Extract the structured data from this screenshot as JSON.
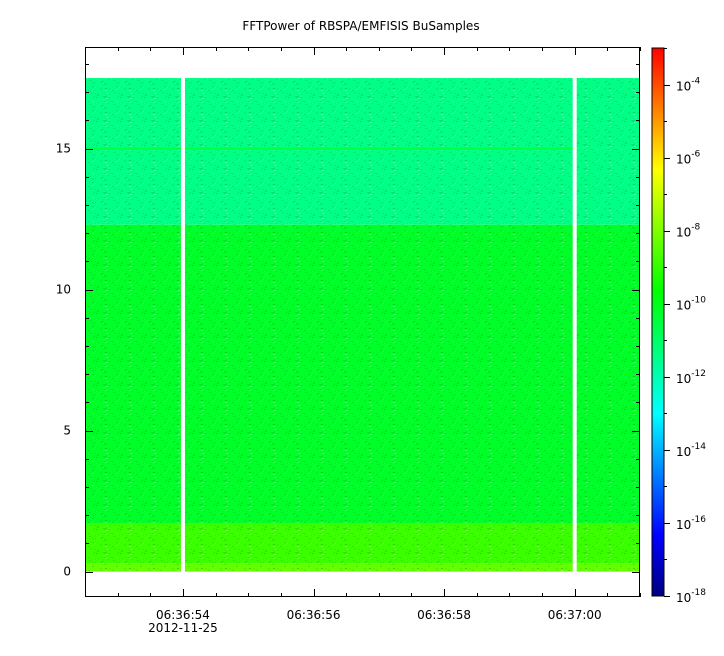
{
  "chart_data": {
    "type": "heatmap",
    "title": "FFTPower of RBSPA/EMFISIS  BuSamples",
    "xlabel": "",
    "ylabel": "",
    "x_axis": {
      "range": [
        "06:36:52.5",
        "06:37:01.0"
      ],
      "ticks": [
        "06:36:54",
        "06:36:56",
        "06:36:58",
        "06:37:00"
      ],
      "date_label": "2012-11-25"
    },
    "y_axis": {
      "range": [
        -0.9,
        18.6
      ],
      "ticks": [
        0,
        5,
        10,
        15
      ]
    },
    "colorbar": {
      "scale": "log",
      "range": [
        1e-18,
        0.001
      ],
      "ticks": [
        {
          "base": "10",
          "exp": "-4"
        },
        {
          "base": "10",
          "exp": "-6"
        },
        {
          "base": "10",
          "exp": "-8"
        },
        {
          "base": "10",
          "exp": "-10"
        },
        {
          "base": "10",
          "exp": "-12"
        },
        {
          "base": "10",
          "exp": "-14"
        },
        {
          "base": "10",
          "exp": "-16"
        },
        {
          "base": "10",
          "exp": "-18"
        }
      ],
      "colormap": [
        "#00007f",
        "#0000ff",
        "#007fff",
        "#00ffff",
        "#00ff7f",
        "#00ff00",
        "#7fff00",
        "#ffff00",
        "#ff7f00",
        "#ff0000"
      ]
    },
    "data_extent": {
      "y": [
        0,
        17.5
      ]
    },
    "gaps": [
      "06:36:54",
      "06:37:00"
    ],
    "bands": [
      {
        "y": [
          0,
          0.3
        ],
        "level_exp": -8.4
      },
      {
        "y": [
          0.3,
          1.7
        ],
        "level_exp": -8.9
      },
      {
        "y": [
          1.7,
          12.3
        ],
        "level_exp": -10.2
      },
      {
        "y": [
          12.3,
          17.5
        ],
        "level_exp": -11.4
      }
    ],
    "lines": [
      {
        "y": 15.0,
        "level_exp": -10.5,
        "until": "06:37:00"
      }
    ]
  }
}
